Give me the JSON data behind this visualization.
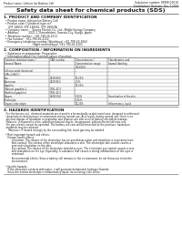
{
  "title": "Safety data sheet for chemical products (SDS)",
  "header_left": "Product name: Lithium Ion Battery Cell",
  "header_right_line1": "Substance number: 99999-00010",
  "header_right_line2": "Established / Revision: Dec.7,2016",
  "section1_title": "1. PRODUCT AND COMPANY IDENTIFICATION",
  "section1_lines": [
    "  • Product name: Lithium Ion Battery Cell",
    "  • Product code: Cylindrical-type cell",
    "      SYF-18650, SYF-18650L, SYF-18650A",
    "  • Company name:    Sumyo Electric Co., Ltd., Mobile Energy Company",
    "  • Address:            2021-1, Kannabidani, Sumoto-City, Hyogo, Japan",
    "  • Telephone number:  +81-799-26-4111",
    "  • Fax number:  +81-799-26-4122",
    "  • Emergency telephone number (Weekdays) +81-799-26-3662",
    "                                    (Night and holidays) +81-799-26-4101"
  ],
  "section2_title": "2. COMPOSITION / INFORMATION ON INGREDIENTS",
  "section2_sub": "  • Substance or preparation: Preparation",
  "section2_table_header": "  • Information about the chemical nature of product:",
  "table_col_headers": [
    [
      "Common chemical name /",
      "CAS number",
      "Concentration /",
      "Classification and"
    ],
    [
      "Several Name",
      "",
      "Concentration range",
      "hazard labeling"
    ],
    [
      "",
      "",
      "(30-60%)",
      ""
    ]
  ],
  "table_rows": [
    [
      "Lithium oxide (tentative)",
      "-",
      "-",
      "-"
    ],
    [
      "(LiMn₂CoNiO₄)",
      "",
      "",
      ""
    ],
    [
      "Iron",
      "7439-89-6",
      "10-25%",
      "-"
    ],
    [
      "Aluminum",
      "7429-90-5",
      "2-5%",
      "-"
    ],
    [
      "Graphite",
      "",
      "10-25%",
      ""
    ],
    [
      "(Natural graphite-1",
      "7782-42-5",
      "",
      ""
    ],
    [
      "(Artificial graphite)",
      "7782-42-5",
      "",
      ""
    ],
    [
      "Copper",
      "7440-50-8",
      "5-15%",
      "Sensitization of the skin"
    ],
    [
      "Electrolyte",
      "-",
      "5-15%",
      ""
    ],
    [
      "Organic electrolyte",
      "-",
      "10-25%",
      "Inflammatory liquid"
    ]
  ],
  "section3_title": "3. HAZARDS IDENTIFICATION",
  "section3_lines": [
    "   For this battery cell, chemical materials are stored in a hermetically sealed metal case, designed to withstand",
    "   temperatures and pressure-environments during normal use. As a result, during normal use, there is no",
    "   physical danger of inhalation or aspiration and chances are slim to nil of battery electrolyte leakage.",
    "   However, if exposed to a fire, added mechanical shocks, decomposed, without electrolyte miss-use,",
    "   the gas release cannot be operated. The battery cell case will be breached at the pressure, hazardous",
    "   materials may be released.",
    "      Moreover, if heated strongly by the surrounding fire, burst gas may be emitted.",
    "",
    "  • Most important hazard and effects:",
    "     Human health effects:",
    "          Inhalation: The release of the electrolyte has an anesthesia action and stimulates a respiratory tract.",
    "          Skin contact: The release of the electrolyte stimulates a skin. The electrolyte skin contact causes a",
    "          sore and stimulation on the skin.",
    "          Eye contact: The release of the electrolyte stimulates eyes. The electrolyte eye contact causes a sore",
    "          and stimulation on the eye. Especially, a substance that causes a strong inflammation of the eyes is",
    "          contained.",
    "",
    "          Environmental effects: Since a battery cell remains in the environment, do not throw out it into the",
    "          environment.",
    "",
    "  • Specific hazards:",
    "     If the electrolyte contacts with water, it will generate detrimental hydrogen fluoride.",
    "     Since the heated electrolyte is inflammatory liquid, do not bring close to fire."
  ],
  "bg_color": "#ffffff",
  "text_color": "#1a1a1a",
  "line_color": "#555555",
  "title_fontsize": 4.5,
  "section_fontsize": 3.0,
  "body_fontsize": 2.4,
  "small_fontsize": 2.1
}
